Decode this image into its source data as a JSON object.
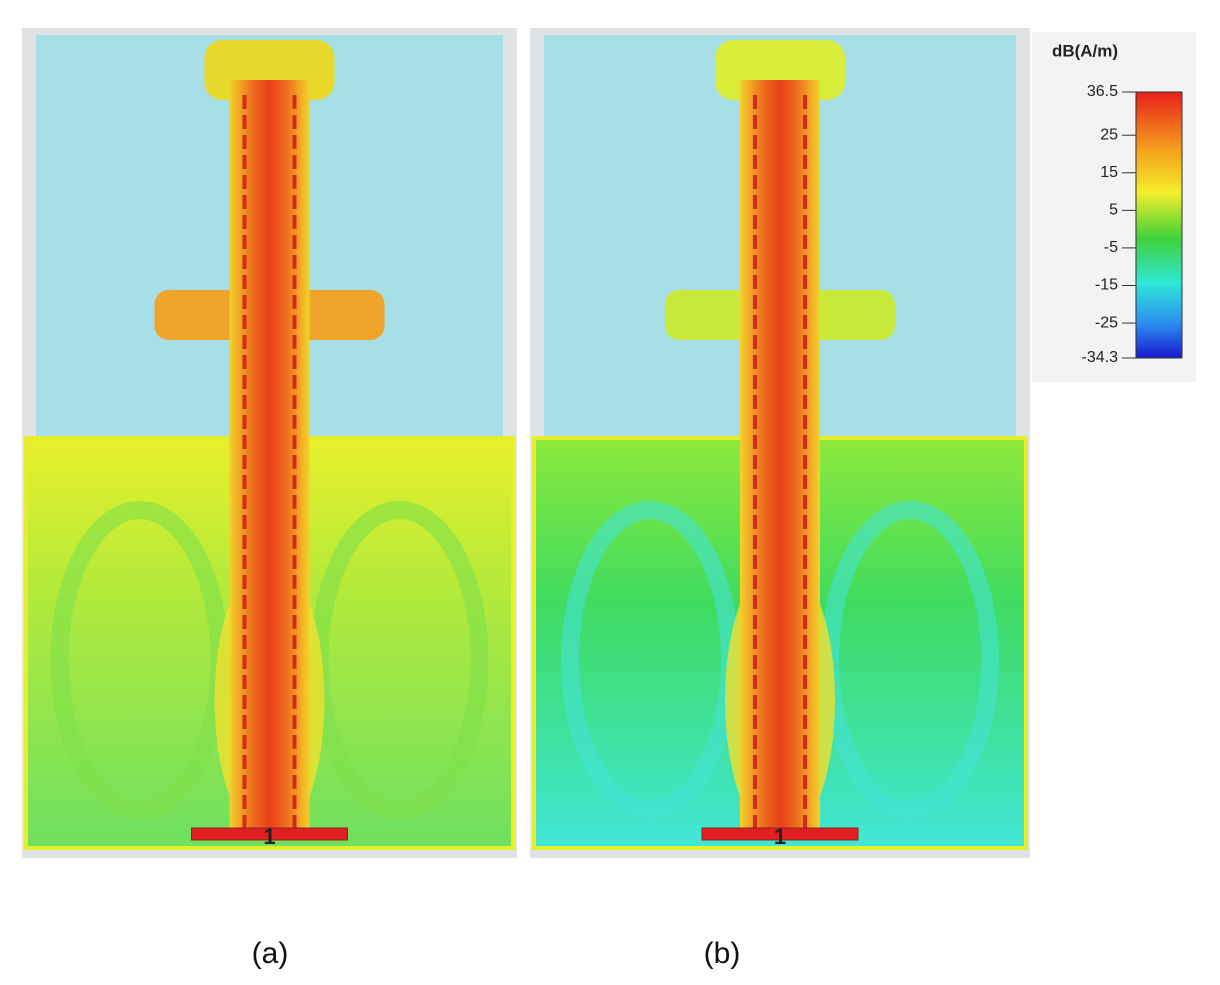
{
  "panels": [
    {
      "label": "(a)",
      "port": "1"
    },
    {
      "label": "(b)",
      "port": "1"
    }
  ],
  "colorbar": {
    "title": "dB(A/m)",
    "ticks": [
      36.5,
      25,
      15,
      5,
      -5,
      -15,
      -25,
      -34.3
    ]
  }
}
